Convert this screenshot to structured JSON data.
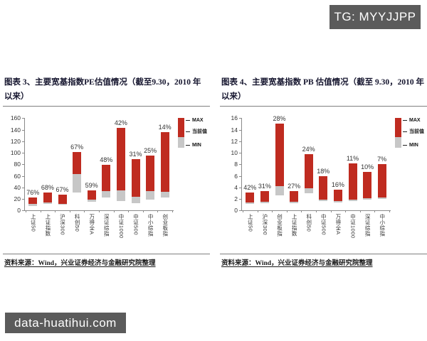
{
  "badges": {
    "tg": "TG: MYYJJPP",
    "site": "data-huatihui.com"
  },
  "chart_data": [
    {
      "type": "bar",
      "subtype": "floating-range-bar (min / current / max)",
      "title": "图表 3、主要宽基指数PE估值情况（截至9.30，2010 年以来）",
      "source": "资料来源：Wind，兴业证券经济与金融研究院整理",
      "categories": [
        "上证50",
        "上证指数",
        "沪深300",
        "科创50",
        "万得全A",
        "深证综指",
        "中证1000",
        "中证500",
        "中小综指",
        "创业板指"
      ],
      "series": [
        {
          "name": "MIN",
          "values": [
            8,
            12,
            10,
            31,
            15,
            22,
            16,
            13,
            19,
            22
          ]
        },
        {
          "name": "当前值",
          "values": [
            11,
            14,
            12,
            63,
            19,
            33,
            35,
            24,
            34,
            32
          ]
        },
        {
          "name": "MAX",
          "values": [
            23,
            31,
            28,
            101,
            35,
            79,
            143,
            89,
            95,
            136
          ]
        }
      ],
      "bar_labels": [
        "76%",
        "68%",
        "67%",
        "67%",
        "59%",
        "48%",
        "42%",
        "31%",
        "25%",
        "14%"
      ],
      "ylim": [
        0,
        160
      ],
      "ytick_step": 20,
      "legend": [
        "MAX",
        "当前值",
        "MIN"
      ],
      "legend_position": "top-right",
      "grid": false,
      "colors": {
        "bar": "#bf2b20",
        "min_segment": "#c7c7c7"
      }
    },
    {
      "type": "bar",
      "subtype": "floating-range-bar (min / current / max)",
      "title": "图表 4、主要宽基指数 PB 估值情况（截至 9.30，2010 年以来）",
      "source": "资料来源：Wind，兴业证券经济与金融研究院整理",
      "categories": [
        "上证50",
        "沪深300",
        "创业板指",
        "上证指数",
        "科创50",
        "中证500",
        "万得全A",
        "中证1000",
        "深证综指",
        "中小综指"
      ],
      "series": [
        {
          "name": "MIN",
          "values": [
            1.2,
            1.3,
            2.6,
            1.3,
            3.0,
            1.6,
            1.4,
            1.6,
            1.9,
            2.0
          ]
        },
        {
          "name": "当前值",
          "values": [
            1.4,
            1.5,
            4.2,
            1.5,
            3.9,
            1.9,
            1.6,
            1.9,
            2.1,
            2.2
          ]
        },
        {
          "name": "MAX",
          "values": [
            3.1,
            3.4,
            15.0,
            3.4,
            9.7,
            5.9,
            3.6,
            8.1,
            6.7,
            8.0
          ]
        }
      ],
      "bar_labels": [
        "42%",
        "31%",
        "28%",
        "27%",
        "24%",
        "18%",
        "16%",
        "11%",
        "10%",
        "7%"
      ],
      "ylim": [
        0,
        16
      ],
      "ytick_step": 2,
      "legend": [
        "MAX",
        "当前值",
        "MIN"
      ],
      "legend_position": "top-right",
      "grid": false,
      "colors": {
        "bar": "#bf2b20",
        "min_segment": "#c7c7c7"
      }
    }
  ]
}
